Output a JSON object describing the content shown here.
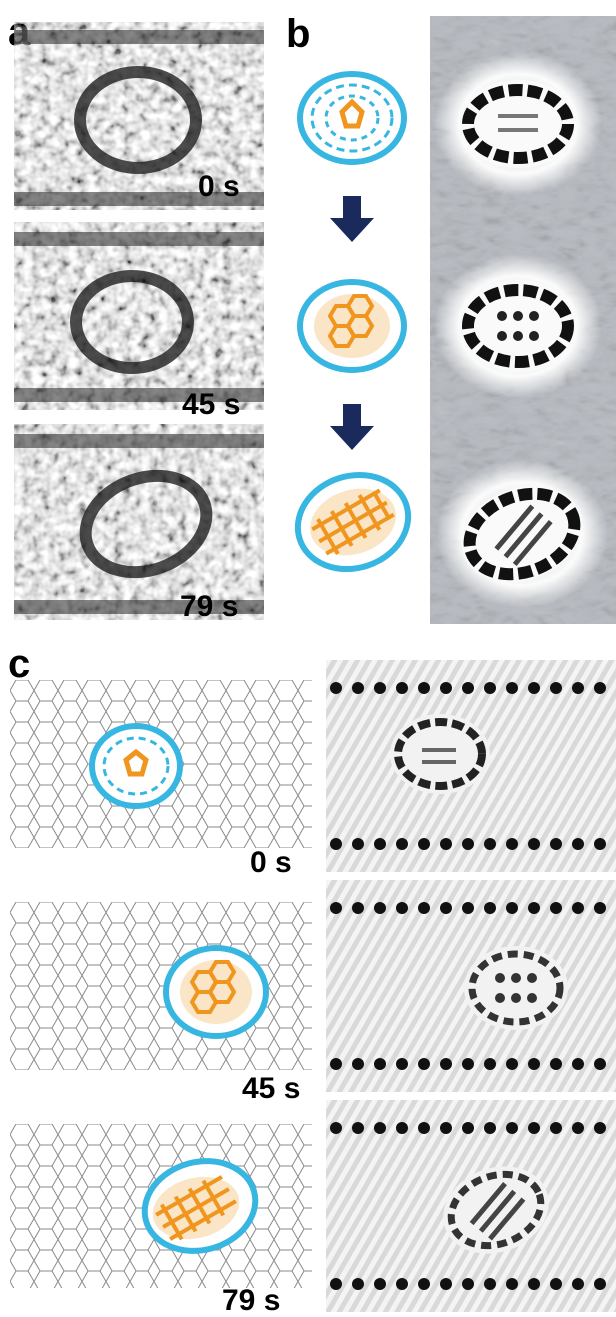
{
  "figure": {
    "panels": [
      {
        "label": "a"
      },
      {
        "label": "b"
      },
      {
        "label": "c"
      }
    ],
    "panel_a_times": [
      "0 s",
      "45 s",
      "79 s"
    ],
    "panel_c_times": [
      "0 s",
      "45 s",
      "79 s"
    ]
  },
  "colors": {
    "cage": "#38b6e2",
    "core": "#f0961e",
    "arrow": "#1b2a5c",
    "tube_line": "#8a8a8a",
    "sim_bg": "#b8bcc2"
  }
}
